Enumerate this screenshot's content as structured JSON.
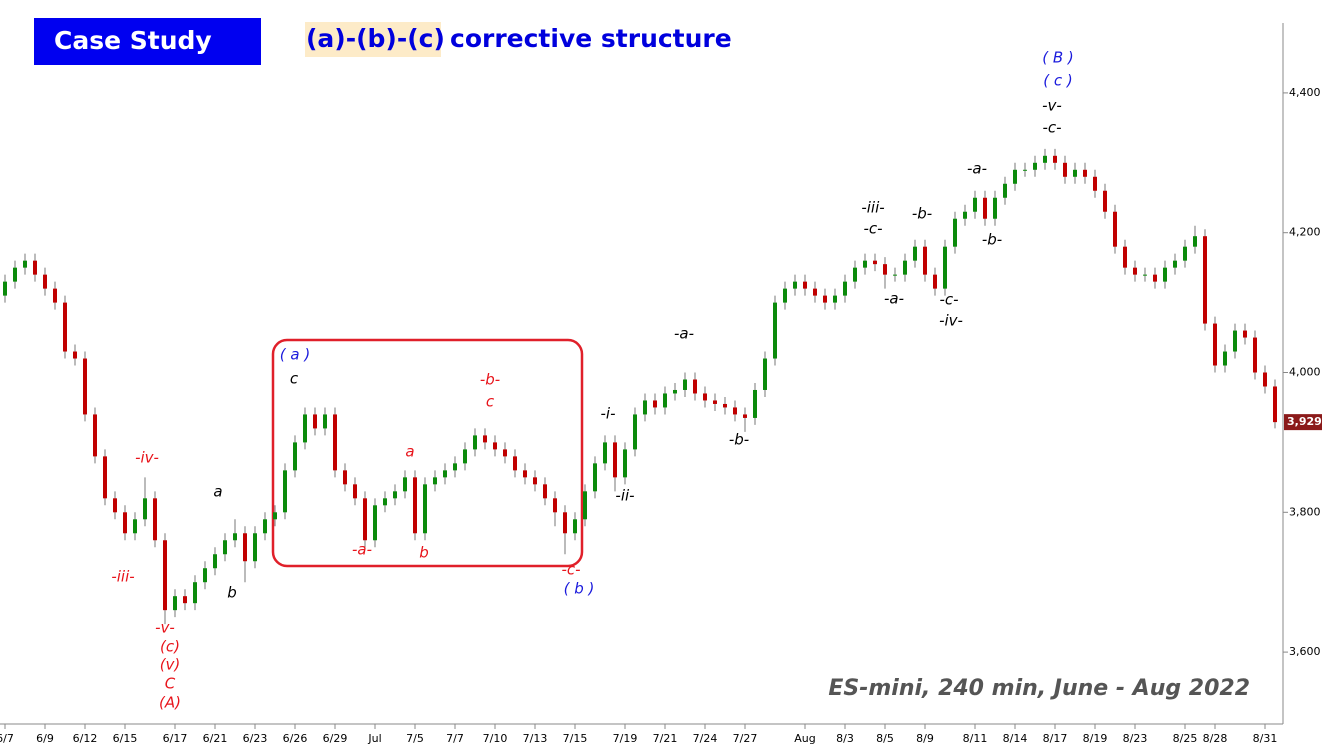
{
  "chart_data": {
    "type": "candlestick",
    "title": "Case Study",
    "subtitle_highlight": "(a)-(b)-(c)",
    "subtitle": "corrective structure",
    "caption": "ES-mini, 240 min, June - Aug 2022",
    "up_color": "#0b8a0b",
    "down_color": "#c00000",
    "ylim": [
      3500,
      4500
    ],
    "yticks": [
      {
        "value": 3600,
        "label": "3,600"
      },
      {
        "value": 3800,
        "label": "3,800"
      },
      {
        "value": 4000,
        "label": "4,000"
      },
      {
        "value": 4200,
        "label": "4,200"
      },
      {
        "value": 4400,
        "label": "4,400"
      }
    ],
    "last_price_label": "3,929",
    "categories": [
      "6/7",
      null,
      null,
      null,
      "6/9",
      null,
      null,
      null,
      "6/12",
      null,
      null,
      null,
      "6/15",
      null,
      null,
      null,
      null,
      "6/17",
      null,
      null,
      null,
      "6/21",
      null,
      null,
      null,
      "6/23",
      null,
      null,
      null,
      "6/26",
      null,
      null,
      null,
      "6/29",
      null,
      null,
      null,
      "Jul",
      null,
      null,
      null,
      "7/5",
      null,
      null,
      null,
      "7/7",
      null,
      null,
      null,
      "7/10",
      null,
      null,
      null,
      "7/13",
      null,
      null,
      null,
      "7/15",
      null,
      null,
      null,
      null,
      "7/19",
      null,
      null,
      null,
      "7/21",
      null,
      null,
      null,
      "7/24",
      null,
      null,
      null,
      "7/27",
      null,
      null,
      null,
      null,
      null,
      "Aug",
      null,
      null,
      null,
      "8/3",
      null,
      null,
      null,
      "8/5",
      null,
      null,
      null,
      "8/9",
      null,
      null,
      null,
      null,
      "8/11",
      null,
      null,
      null,
      "8/14",
      null,
      null,
      null,
      "8/17",
      null,
      null,
      null,
      "8/19",
      null,
      null,
      null,
      "8/23",
      null,
      null,
      null,
      null,
      "8/25",
      null,
      null,
      "8/28",
      null,
      null,
      null,
      null,
      "8/31",
      null
    ],
    "open": [
      4110,
      4130,
      4150,
      4160,
      4140,
      4120,
      4100,
      4030,
      4020,
      3940,
      3880,
      3820,
      3800,
      3770,
      3790,
      3820,
      3760,
      3660,
      3680,
      3670,
      3700,
      3720,
      3740,
      3760,
      3770,
      3730,
      3770,
      3790,
      3800,
      3860,
      3900,
      3940,
      3920,
      3940,
      3860,
      3840,
      3820,
      3760,
      3810,
      3820,
      3830,
      3850,
      3770,
      3840,
      3850,
      3860,
      3870,
      3890,
      3910,
      3900,
      3890,
      3880,
      3860,
      3850,
      3840,
      3820,
      3800,
      3770,
      3790,
      3830,
      3870,
      3900,
      3850,
      3890,
      3940,
      3960,
      3950,
      3970,
      3975,
      3990,
      3970,
      3960,
      3955,
      3950,
      3940,
      3935,
      3975,
      4020,
      4100,
      4120,
      4130,
      4120,
      4110,
      4100,
      4110,
      4130,
      4150,
      4160,
      4155,
      4140,
      4140,
      4160,
      4180,
      4140,
      4120,
      4180,
      4220,
      4230,
      4250,
      4220,
      4250,
      4270,
      4290,
      4290,
      4300,
      4310,
      4300,
      4280,
      4290,
      4280,
      4260,
      4230,
      4180,
      4150,
      4140,
      4140,
      4130,
      4150,
      4160,
      4180,
      4195,
      4070,
      4010,
      4030,
      4060,
      4050,
      4000,
      3980
    ],
    "high": [
      4140,
      4160,
      4170,
      4170,
      4150,
      4130,
      4110,
      4040,
      4030,
      3950,
      3890,
      3830,
      3810,
      3800,
      3850,
      3830,
      3770,
      3690,
      3690,
      3710,
      3730,
      3750,
      3770,
      3790,
      3780,
      3780,
      3800,
      3810,
      3870,
      3910,
      3950,
      3950,
      3950,
      3950,
      3870,
      3850,
      3830,
      3820,
      3830,
      3840,
      3860,
      3860,
      3850,
      3860,
      3870,
      3880,
      3900,
      3920,
      3920,
      3910,
      3900,
      3890,
      3870,
      3860,
      3850,
      3830,
      3810,
      3800,
      3840,
      3880,
      3910,
      3910,
      3900,
      3950,
      3970,
      3970,
      3980,
      3985,
      4000,
      4000,
      3980,
      3970,
      3965,
      3960,
      3950,
      3985,
      4030,
      4110,
      4130,
      4140,
      4140,
      4130,
      4120,
      4120,
      4140,
      4160,
      4170,
      4170,
      4165,
      4150,
      4170,
      4190,
      4190,
      4150,
      4190,
      4230,
      4240,
      4260,
      4260,
      4260,
      4280,
      4300,
      4300,
      4310,
      4320,
      4320,
      4310,
      4300,
      4300,
      4290,
      4270,
      4240,
      4190,
      4160,
      4150,
      4150,
      4160,
      4170,
      4190,
      4210,
      4205,
      4080,
      4040,
      4070,
      4070,
      4060,
      4010,
      3990
    ],
    "low": [
      4100,
      4120,
      4140,
      4130,
      4110,
      4090,
      4020,
      4010,
      3930,
      3870,
      3810,
      3790,
      3760,
      3760,
      3780,
      3750,
      3640,
      3650,
      3660,
      3660,
      3690,
      3710,
      3730,
      3750,
      3700,
      3720,
      3760,
      3780,
      3790,
      3850,
      3890,
      3910,
      3910,
      3850,
      3830,
      3810,
      3750,
      3750,
      3800,
      3810,
      3820,
      3760,
      3760,
      3830,
      3840,
      3850,
      3860,
      3880,
      3890,
      3880,
      3870,
      3850,
      3840,
      3830,
      3810,
      3780,
      3740,
      3760,
      3780,
      3820,
      3860,
      3830,
      3840,
      3880,
      3930,
      3940,
      3940,
      3960,
      3965,
      3960,
      3950,
      3945,
      3940,
      3930,
      3915,
      3925,
      3965,
      4010,
      4090,
      4110,
      4110,
      4100,
      4090,
      4090,
      4100,
      4120,
      4140,
      4145,
      4120,
      4130,
      4130,
      4150,
      4130,
      4110,
      4110,
      4170,
      4210,
      4220,
      4210,
      4210,
      4240,
      4260,
      4280,
      4280,
      4290,
      4290,
      4270,
      4270,
      4270,
      4250,
      4220,
      4170,
      4140,
      4130,
      4130,
      4120,
      4120,
      4140,
      4150,
      4170,
      4060,
      4000,
      4000,
      4020,
      4040,
      3990,
      3970,
      3920
    ],
    "close": [
      4130,
      4150,
      4160,
      4140,
      4120,
      4100,
      4030,
      4020,
      3940,
      3880,
      3820,
      3800,
      3770,
      3790,
      3820,
      3760,
      3660,
      3680,
      3670,
      3700,
      3720,
      3740,
      3760,
      3770,
      3730,
      3770,
      3790,
      3800,
      3860,
      3900,
      3940,
      3920,
      3940,
      3860,
      3840,
      3820,
      3760,
      3810,
      3820,
      3830,
      3850,
      3770,
      3840,
      3850,
      3860,
      3870,
      3890,
      3910,
      3900,
      3890,
      3880,
      3860,
      3850,
      3840,
      3820,
      3800,
      3770,
      3790,
      3830,
      3870,
      3900,
      3850,
      3890,
      3940,
      3960,
      3950,
      3970,
      3975,
      3990,
      3970,
      3960,
      3955,
      3950,
      3940,
      3935,
      3975,
      4020,
      4100,
      4120,
      4130,
      4120,
      4110,
      4100,
      4110,
      4130,
      4150,
      4160,
      4155,
      4140,
      4140,
      4160,
      4180,
      4140,
      4120,
      4180,
      4220,
      4230,
      4250,
      4220,
      4250,
      4270,
      4290,
      4290,
      4300,
      4310,
      4300,
      4280,
      4290,
      4280,
      4260,
      4230,
      4180,
      4150,
      4140,
      4140,
      4130,
      4150,
      4160,
      4180,
      4195,
      4070,
      4010,
      4030,
      4060,
      4050,
      4000,
      3980,
      3929
    ],
    "annotations": [
      {
        "text": "-iv-",
        "color": "#e8141b"
      },
      {
        "text": "-iii-",
        "color": "#e8141b"
      },
      {
        "text": "-v-",
        "color": "#e8141b"
      },
      {
        "text": "(c)",
        "color": "#e8141b"
      },
      {
        "text": "(v)",
        "color": "#e8141b"
      },
      {
        "text": "C",
        "color": "#e8141b"
      },
      {
        "text": "(A)",
        "color": "#e8141b"
      },
      {
        "text": "-a-",
        "color": "#e8141b"
      },
      {
        "text": "b",
        "color": "#e8141b"
      },
      {
        "text": "a",
        "color": "#e8141b"
      },
      {
        "text": "-b-",
        "color": "#e8141b"
      },
      {
        "text": "c",
        "color": "#e8141b"
      },
      {
        "text": "-c-",
        "color": "#e8141b"
      },
      {
        "text": "a",
        "color": "#000000"
      },
      {
        "text": "b",
        "color": "#000000"
      },
      {
        "text": "c",
        "color": "#000000"
      },
      {
        "text": "-i-",
        "color": "#000000"
      },
      {
        "text": "-ii-",
        "color": "#000000"
      },
      {
        "text": "-a-",
        "color": "#000000"
      },
      {
        "text": "-b-",
        "color": "#000000"
      },
      {
        "text": "-iii-",
        "color": "#000000"
      },
      {
        "text": "-c-",
        "color": "#000000"
      },
      {
        "text": "-b-",
        "color": "#000000"
      },
      {
        "text": "-a-",
        "color": "#000000"
      },
      {
        "text": "-c-",
        "color": "#000000"
      },
      {
        "text": "-iv-",
        "color": "#000000"
      },
      {
        "text": "-b-",
        "color": "#000000"
      },
      {
        "text": "-a-",
        "color": "#000000"
      },
      {
        "text": "-v-",
        "color": "#000000"
      },
      {
        "text": "-c-",
        "color": "#000000"
      },
      {
        "text": "( a )",
        "color": "#1a1adc"
      },
      {
        "text": "( b )",
        "color": "#1a1adc"
      },
      {
        "text": "( B )",
        "color": "#1a1adc"
      },
      {
        "text": "( c )",
        "color": "#1a1adc"
      }
    ]
  }
}
